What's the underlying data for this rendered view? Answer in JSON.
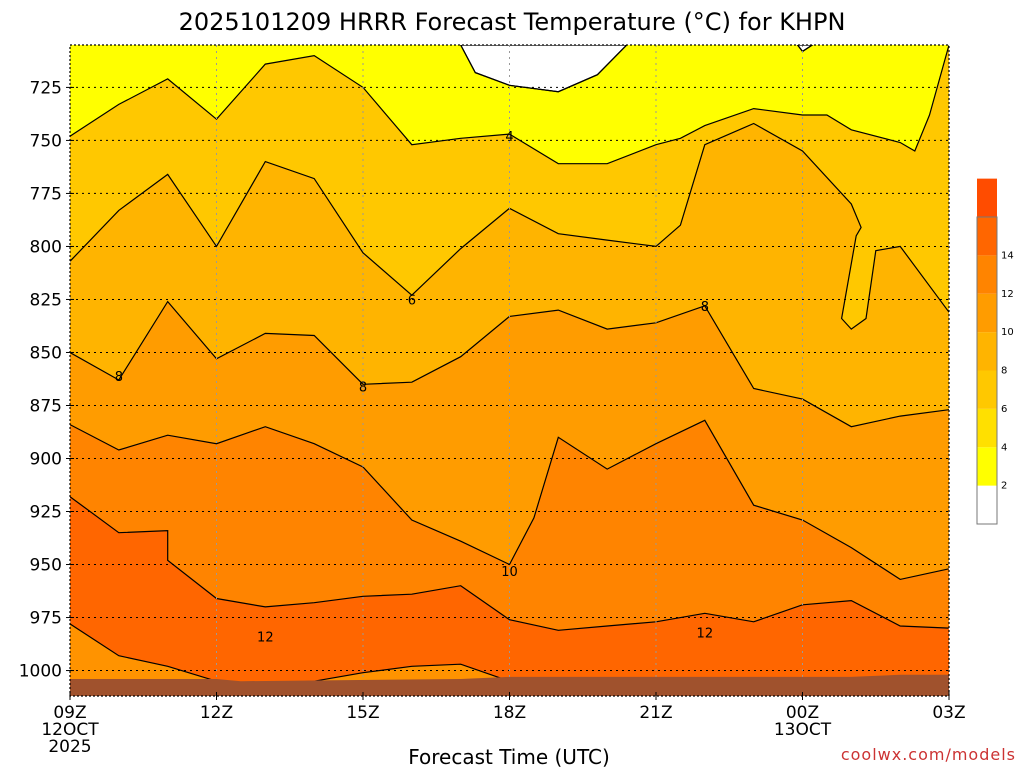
{
  "chart_data": {
    "type": "heatmap",
    "title": "2025101209 HRRR Forecast Temperature (°C) for KHPN",
    "xlabel": "Forecast Time (UTC)",
    "ylabel": "",
    "x_ticks": [
      {
        "hour": 0,
        "lines": [
          "09Z",
          "12OCT",
          "2025"
        ]
      },
      {
        "hour": 3,
        "lines": [
          "12Z"
        ]
      },
      {
        "hour": 6,
        "lines": [
          "15Z"
        ]
      },
      {
        "hour": 9,
        "lines": [
          "18Z"
        ]
      },
      {
        "hour": 12,
        "lines": [
          "21Z"
        ]
      },
      {
        "hour": 15,
        "lines": [
          "00Z",
          "13OCT"
        ]
      },
      {
        "hour": 18,
        "lines": [
          "03Z"
        ]
      }
    ],
    "xlim_hours": [
      0,
      18
    ],
    "y_ticks": [
      725,
      750,
      775,
      800,
      825,
      850,
      875,
      900,
      925,
      950,
      975,
      1000
    ],
    "ylim_hPa": [
      705,
      1012
    ],
    "grid": true,
    "colorbar": {
      "position": "right",
      "ticks": [
        2,
        4,
        6,
        8,
        10,
        12,
        14
      ],
      "levels": [
        0,
        2,
        4,
        6,
        8,
        10,
        12,
        14,
        16
      ],
      "colors": [
        "#ffffff",
        "#ffff00",
        "#ffe000",
        "#ffc800",
        "#ffb400",
        "#ff9c00",
        "#ff8400",
        "#ff6600",
        "#ff4c00"
      ]
    },
    "background_color": "#ff9300",
    "ground_color": "#a0522d",
    "line_color": "#000000",
    "contours": [
      {
        "label": "",
        "fill": "#ffffff",
        "points": [
          [
            8.0,
            705
          ],
          [
            8.3,
            718
          ],
          [
            9.0,
            724
          ],
          [
            10.0,
            727
          ],
          [
            10.8,
            719
          ],
          [
            11.4,
            705
          ]
        ]
      },
      {
        "label": "",
        "fill": "#ffffff",
        "points": [
          [
            14.9,
            705
          ],
          [
            15.0,
            708
          ],
          [
            15.2,
            705
          ]
        ]
      },
      {
        "label": "",
        "fill": "#ffff00",
        "points": [
          [
            0,
            705
          ],
          [
            18,
            705
          ],
          [
            18,
            705
          ]
        ]
      },
      {
        "label": "4",
        "fill": "#ffe000",
        "points": [
          [
            0,
            748
          ],
          [
            1,
            733
          ],
          [
            2,
            721
          ],
          [
            3,
            740
          ],
          [
            4,
            714
          ],
          [
            5,
            710
          ],
          [
            6,
            725
          ],
          [
            7,
            752
          ],
          [
            8,
            749
          ],
          [
            9,
            747
          ],
          [
            10,
            761
          ],
          [
            11,
            761
          ],
          [
            12,
            752
          ],
          [
            12.5,
            749
          ],
          [
            13,
            743
          ],
          [
            14,
            735
          ],
          [
            15,
            738
          ],
          [
            15.5,
            738
          ],
          [
            16,
            745
          ],
          [
            17,
            751
          ],
          [
            17.3,
            755
          ],
          [
            17.6,
            738
          ],
          [
            18,
            705
          ]
        ]
      },
      {
        "label": "6",
        "fill": "#ffc800",
        "points": [
          [
            0,
            807
          ],
          [
            1,
            783
          ],
          [
            2,
            766
          ],
          [
            3,
            800
          ],
          [
            4,
            760
          ],
          [
            5,
            768
          ],
          [
            6,
            803
          ],
          [
            7,
            823
          ],
          [
            8,
            801
          ],
          [
            9,
            782
          ],
          [
            10,
            794
          ],
          [
            11,
            797
          ],
          [
            12,
            800
          ],
          [
            12.5,
            790
          ],
          [
            13,
            752
          ],
          [
            14,
            742
          ],
          [
            15,
            755
          ],
          [
            16,
            780
          ],
          [
            16.2,
            791
          ],
          [
            16.1,
            795
          ],
          [
            15.8,
            834
          ],
          [
            16.0,
            839
          ],
          [
            16.3,
            834
          ],
          [
            16.5,
            802
          ],
          [
            17,
            800
          ],
          [
            18,
            831
          ]
        ]
      },
      {
        "label": "8",
        "fill": "#ffb400",
        "points": [
          [
            0,
            850
          ],
          [
            1,
            863
          ],
          [
            2,
            826
          ],
          [
            3,
            853
          ],
          [
            4,
            841
          ],
          [
            5,
            842
          ],
          [
            6,
            865
          ],
          [
            7,
            864
          ],
          [
            8,
            852
          ],
          [
            9,
            833
          ],
          [
            10,
            830
          ],
          [
            11,
            839
          ],
          [
            12,
            836
          ],
          [
            13,
            828
          ],
          [
            14,
            867
          ],
          [
            15,
            872
          ],
          [
            16,
            885
          ],
          [
            17,
            880
          ],
          [
            18,
            877
          ]
        ]
      },
      {
        "label": "",
        "fill": "#ff9c00",
        "points": [
          [
            0,
            884
          ],
          [
            1,
            896
          ],
          [
            2,
            889
          ],
          [
            3,
            893
          ],
          [
            4,
            885
          ],
          [
            5,
            893
          ],
          [
            6,
            904
          ],
          [
            7,
            929
          ],
          [
            8,
            939
          ],
          [
            9,
            950
          ],
          [
            9.5,
            928
          ],
          [
            10,
            890
          ],
          [
            11,
            905
          ],
          [
            12,
            893
          ],
          [
            13,
            882
          ],
          [
            14,
            922
          ],
          [
            15,
            929
          ],
          [
            16,
            942
          ],
          [
            17,
            957
          ],
          [
            18,
            952
          ]
        ]
      },
      {
        "label": "10",
        "fill": "#ff8400",
        "points": [
          [
            0,
            918
          ],
          [
            1,
            935
          ],
          [
            2,
            934
          ],
          [
            2,
            948
          ],
          [
            3,
            966
          ],
          [
            4,
            970
          ],
          [
            5,
            968
          ],
          [
            6,
            965
          ],
          [
            7,
            964
          ],
          [
            8,
            960
          ],
          [
            9,
            976
          ],
          [
            10,
            981
          ],
          [
            11,
            979
          ],
          [
            12,
            977
          ],
          [
            13,
            973
          ],
          [
            14,
            977
          ],
          [
            15,
            969
          ],
          [
            16,
            967
          ],
          [
            17,
            979
          ],
          [
            18,
            980
          ]
        ]
      },
      {
        "label": "12",
        "fill": "#ff6600",
        "points": [
          [
            0,
            978
          ],
          [
            1,
            993
          ],
          [
            2,
            998
          ],
          [
            3,
            1005
          ],
          [
            4,
            1006
          ],
          [
            5,
            1005
          ],
          [
            6,
            1001
          ],
          [
            7,
            998
          ],
          [
            8,
            997
          ],
          [
            9,
            1005
          ],
          [
            10,
            1008
          ],
          [
            11,
            1008
          ],
          [
            12,
            1008
          ],
          [
            13,
            1008
          ],
          [
            14,
            1008
          ],
          [
            15,
            1008
          ],
          [
            16,
            1008
          ],
          [
            17,
            1008
          ],
          [
            18,
            1008
          ]
        ]
      }
    ],
    "contour_labels": [
      {
        "value": "4",
        "x": 9.0,
        "y": 748
      },
      {
        "value": "6",
        "x": 7.0,
        "y": 825
      },
      {
        "value": "8",
        "x": 13.0,
        "y": 828
      },
      {
        "value": "8",
        "x": 1.0,
        "y": 861
      },
      {
        "value": "8",
        "x": 6.0,
        "y": 866
      },
      {
        "value": "10",
        "x": 9.0,
        "y": 953
      },
      {
        "value": "12",
        "x": 4.0,
        "y": 984
      },
      {
        "value": "12",
        "x": 13.0,
        "y": 982
      }
    ],
    "ground_top": [
      [
        0,
        1004
      ],
      [
        3,
        1004
      ],
      [
        3.5,
        1005
      ],
      [
        8,
        1004
      ],
      [
        9,
        1003
      ],
      [
        12,
        1003
      ],
      [
        15,
        1003
      ],
      [
        16,
        1003
      ],
      [
        17,
        1002
      ],
      [
        18,
        1002
      ]
    ]
  },
  "credit": "coolwx.com/models"
}
